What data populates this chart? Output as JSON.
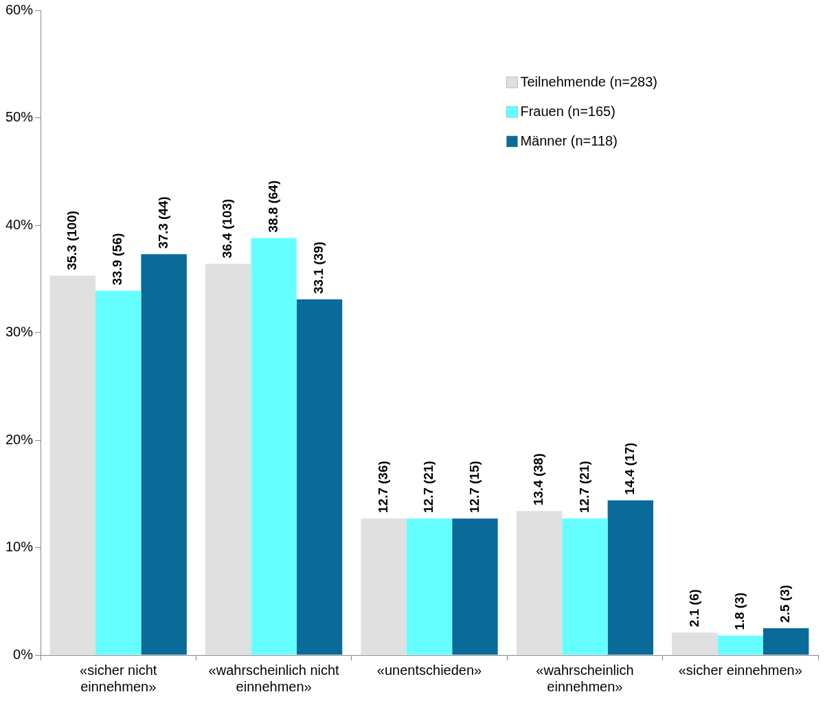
{
  "chart_data": {
    "type": "bar",
    "categories": [
      "«sicher nicht einnehmen»",
      "«wahrscheinlich nicht einnehmen»",
      "«unentschieden»",
      "«wahrscheinlich einnehmen»",
      "«sicher einnehmen»"
    ],
    "series": [
      {
        "name": "Teilnehmende (n=283)",
        "color": "#e0e0e0",
        "values": [
          35.3,
          36.4,
          12.7,
          13.4,
          2.1
        ],
        "value_labels": [
          "35.3 (100)",
          "36.4 (103)",
          "12.7 (36)",
          "13.4 (38)",
          "2.1 (6)"
        ]
      },
      {
        "name": "Frauen (n=165)",
        "color": "#66ffff",
        "values": [
          33.9,
          38.8,
          12.7,
          12.7,
          1.8
        ],
        "value_labels": [
          "33.9 (56)",
          "38.8 (64)",
          "12.7 (21)",
          "12.7 (21)",
          "1.8 (3)"
        ]
      },
      {
        "name": "Männer (n=118)",
        "color": "#0a6a9a",
        "values": [
          37.3,
          33.1,
          12.7,
          14.4,
          2.5
        ],
        "value_labels": [
          "37.3 (44)",
          "33.1 (39)",
          "12.7 (15)",
          "14.4 (17)",
          "2.5 (3)"
        ]
      }
    ],
    "ylim": [
      0,
      60
    ],
    "yticks": [
      {
        "value": 0,
        "label": "0%"
      },
      {
        "value": 10,
        "label": "10%"
      },
      {
        "value": 20,
        "label": "20%"
      },
      {
        "value": 30,
        "label": "30%"
      },
      {
        "value": 40,
        "label": "40%"
      },
      {
        "value": 50,
        "label": "50%"
      },
      {
        "value": 60,
        "label": "60%"
      }
    ],
    "grid": false,
    "legend": "top right"
  }
}
